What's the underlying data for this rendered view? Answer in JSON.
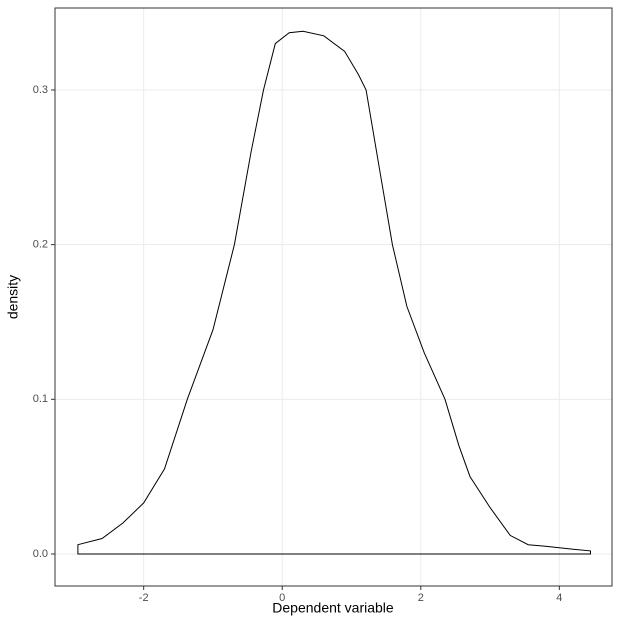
{
  "chart_data": {
    "type": "density",
    "x_label": "Dependent variable",
    "y_label": "density",
    "x": [
      -2.95,
      -2.6,
      -2.3,
      -2.0,
      -1.7,
      -1.37,
      -1.0,
      -0.69,
      -0.45,
      -0.27,
      -0.1,
      0.1,
      0.3,
      0.6,
      0.9,
      1.1,
      1.21,
      1.4,
      1.59,
      1.8,
      2.05,
      2.35,
      2.55,
      2.71,
      3.0,
      3.29,
      3.55,
      3.8,
      4.0,
      4.2,
      4.45
    ],
    "y": [
      0.006,
      0.01,
      0.02,
      0.033,
      0.055,
      0.1,
      0.145,
      0.2,
      0.26,
      0.3,
      0.33,
      0.337,
      0.338,
      0.335,
      0.325,
      0.31,
      0.3,
      0.25,
      0.2,
      0.16,
      0.13,
      0.1,
      0.07,
      0.05,
      0.03,
      0.012,
      0.006,
      0.005,
      0.004,
      0.003,
      0.002
    ],
    "color": "#000000",
    "xlim": [
      -3.28,
      4.76
    ],
    "ylim": [
      -0.0207,
      0.353
    ],
    "xticks": [
      -2,
      0,
      2,
      4
    ],
    "yticks": [
      {
        "value": 0,
        "label": "0.0"
      },
      0.1,
      0.2,
      0.3
    ],
    "grid": true
  }
}
